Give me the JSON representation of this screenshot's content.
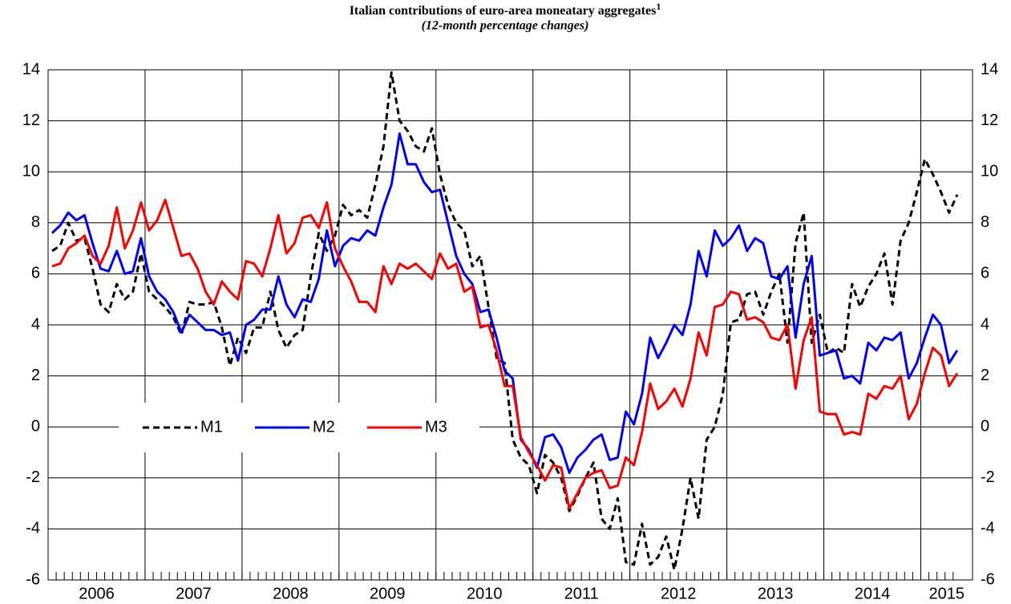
{
  "chart_data": {
    "type": "line",
    "title": "Italian contributions of euro-area moneatary aggregates",
    "title_superscript": "1",
    "subtitle": "(12-month percentage changes)",
    "x": [
      "2006-01",
      "2006-02",
      "2006-03",
      "2006-04",
      "2006-05",
      "2006-06",
      "2006-07",
      "2006-08",
      "2006-09",
      "2006-10",
      "2006-11",
      "2006-12",
      "2007-01",
      "2007-02",
      "2007-03",
      "2007-04",
      "2007-05",
      "2007-06",
      "2007-07",
      "2007-08",
      "2007-09",
      "2007-10",
      "2007-11",
      "2007-12",
      "2008-01",
      "2008-02",
      "2008-03",
      "2008-04",
      "2008-05",
      "2008-06",
      "2008-07",
      "2008-08",
      "2008-09",
      "2008-10",
      "2008-11",
      "2008-12",
      "2009-01",
      "2009-02",
      "2009-03",
      "2009-04",
      "2009-05",
      "2009-06",
      "2009-07",
      "2009-08",
      "2009-09",
      "2009-10",
      "2009-11",
      "2009-12",
      "2010-01",
      "2010-02",
      "2010-03",
      "2010-04",
      "2010-05",
      "2010-06",
      "2010-07",
      "2010-08",
      "2010-09",
      "2010-10",
      "2010-11",
      "2010-12",
      "2011-01",
      "2011-02",
      "2011-03",
      "2011-04",
      "2011-05",
      "2011-06",
      "2011-07",
      "2011-08",
      "2011-09",
      "2011-10",
      "2011-11",
      "2011-12",
      "2012-01",
      "2012-02",
      "2012-03",
      "2012-04",
      "2012-05",
      "2012-06",
      "2012-07",
      "2012-08",
      "2012-09",
      "2012-10",
      "2012-11",
      "2012-12",
      "2013-01",
      "2013-02",
      "2013-03",
      "2013-04",
      "2013-05",
      "2013-06",
      "2013-07",
      "2013-08",
      "2013-09",
      "2013-10",
      "2013-11",
      "2013-12",
      "2014-01",
      "2014-02",
      "2014-03",
      "2014-04",
      "2014-05",
      "2014-06",
      "2014-07",
      "2014-08",
      "2014-09",
      "2014-10",
      "2014-11",
      "2014-12",
      "2015-01",
      "2015-02",
      "2015-03",
      "2015-04",
      "2015-05"
    ],
    "series": [
      {
        "name": "M1",
        "color": "#000000",
        "dashed": true,
        "values": [
          6.9,
          7.1,
          8.0,
          7.3,
          7.4,
          6.2,
          4.8,
          4.5,
          5.6,
          5.0,
          5.3,
          6.8,
          5.3,
          5.0,
          4.7,
          4.3,
          3.6,
          4.9,
          4.8,
          4.8,
          4.9,
          3.9,
          2.4,
          3.5,
          2.9,
          3.9,
          3.9,
          5.3,
          3.8,
          3.1,
          3.6,
          3.8,
          5.9,
          7.6,
          6.9,
          7.5,
          8.7,
          8.3,
          8.5,
          8.2,
          9.5,
          11.0,
          13.9,
          12.0,
          11.6,
          11.0,
          10.8,
          11.7,
          9.9,
          8.7,
          8.0,
          7.7,
          6.3,
          6.7,
          4.7,
          2.7,
          2.5,
          -0.5,
          -1.2,
          -1.5,
          -2.6,
          -1.1,
          -1.4,
          -2.0,
          -3.3,
          -2.7,
          -2.0,
          -1.4,
          -3.6,
          -4.0,
          -2.8,
          -5.3,
          -5.4,
          -3.8,
          -5.4,
          -5.1,
          -4.3,
          -5.6,
          -4.0,
          -2.0,
          -3.6,
          -0.5,
          0.0,
          1.3,
          4.1,
          4.2,
          5.2,
          5.3,
          4.4,
          5.3,
          6.0,
          3.3,
          7.2,
          8.4,
          3.3,
          4.4,
          2.9,
          3.1,
          2.9,
          5.6,
          4.7,
          5.5,
          6.0,
          6.8,
          4.8,
          7.3,
          8.0,
          9.2,
          10.5,
          9.9,
          9.2,
          8.4,
          9.1
        ]
      },
      {
        "name": "M2",
        "color": "#0000ff",
        "dashed": false,
        "values": [
          7.6,
          7.9,
          8.4,
          8.1,
          8.3,
          7.2,
          6.2,
          6.1,
          6.9,
          6.0,
          6.1,
          7.4,
          5.9,
          5.3,
          5.0,
          4.5,
          3.7,
          4.4,
          4.1,
          3.8,
          3.8,
          3.6,
          3.7,
          2.6,
          4.0,
          4.2,
          4.6,
          4.6,
          5.9,
          4.8,
          4.3,
          5.0,
          4.9,
          5.8,
          7.7,
          6.3,
          7.1,
          7.4,
          7.3,
          7.7,
          7.5,
          8.6,
          9.5,
          11.5,
          10.3,
          10.3,
          9.6,
          9.2,
          9.3,
          8.0,
          6.7,
          6.0,
          5.6,
          4.5,
          4.6,
          3.5,
          2.2,
          1.9,
          -0.5,
          -0.9,
          -1.6,
          -0.4,
          -0.3,
          -0.8,
          -1.8,
          -1.2,
          -0.9,
          -0.5,
          -0.3,
          -1.3,
          -1.2,
          0.6,
          0.1,
          1.3,
          3.5,
          2.7,
          3.3,
          4.0,
          3.6,
          4.8,
          6.9,
          5.9,
          7.7,
          7.1,
          7.4,
          7.9,
          6.9,
          7.4,
          7.2,
          5.9,
          5.8,
          6.3,
          3.5,
          5.6,
          6.7,
          2.8,
          2.9,
          3.0,
          1.9,
          2.0,
          1.7,
          3.3,
          3.0,
          3.5,
          3.4,
          3.7,
          1.9,
          2.5,
          3.5,
          4.4,
          4.0,
          2.5,
          3.0
        ]
      },
      {
        "name": "M3",
        "color": "#ff0000",
        "dashed": false,
        "values": [
          6.3,
          6.4,
          7.0,
          7.2,
          7.5,
          6.7,
          6.4,
          7.1,
          8.6,
          7.0,
          7.7,
          8.8,
          7.7,
          8.1,
          8.9,
          7.8,
          6.7,
          6.8,
          6.2,
          5.3,
          4.8,
          5.7,
          5.3,
          5.0,
          6.5,
          6.4,
          5.9,
          7.0,
          8.3,
          6.8,
          7.2,
          8.2,
          8.3,
          7.8,
          8.8,
          7.0,
          6.3,
          5.7,
          4.9,
          4.9,
          4.5,
          6.3,
          5.6,
          6.4,
          6.2,
          6.4,
          6.1,
          5.8,
          6.8,
          6.2,
          6.4,
          5.3,
          5.5,
          3.9,
          4.0,
          3.0,
          1.6,
          1.6,
          -0.4,
          -1.0,
          -1.5,
          -2.1,
          -1.5,
          -1.6,
          -3.2,
          -2.6,
          -2.0,
          -1.8,
          -1.7,
          -2.4,
          -2.3,
          -1.2,
          -1.5,
          -0.2,
          1.7,
          0.7,
          1.0,
          1.5,
          0.8,
          1.9,
          3.7,
          2.8,
          4.7,
          4.8,
          5.3,
          5.2,
          4.2,
          4.3,
          4.1,
          3.5,
          3.4,
          4.0,
          1.5,
          3.4,
          4.3,
          0.6,
          0.5,
          0.5,
          -0.3,
          -0.2,
          -0.3,
          1.3,
          1.1,
          1.6,
          1.5,
          2.0,
          0.3,
          0.9,
          2.1,
          3.1,
          2.8,
          1.6,
          2.1
        ]
      }
    ],
    "xticks": [
      2006,
      2007,
      2008,
      2009,
      2010,
      2011,
      2012,
      2013,
      2014,
      2015
    ],
    "ylim": [
      -6,
      14
    ],
    "yticks": [
      -6,
      -4,
      -2,
      0,
      2,
      4,
      6,
      8,
      10,
      12,
      14
    ],
    "y2lim": [
      -6,
      14
    ],
    "y2ticks": [
      -6,
      -4,
      -2,
      0,
      2,
      4,
      6,
      8,
      10,
      12,
      14
    ],
    "grid": true
  }
}
